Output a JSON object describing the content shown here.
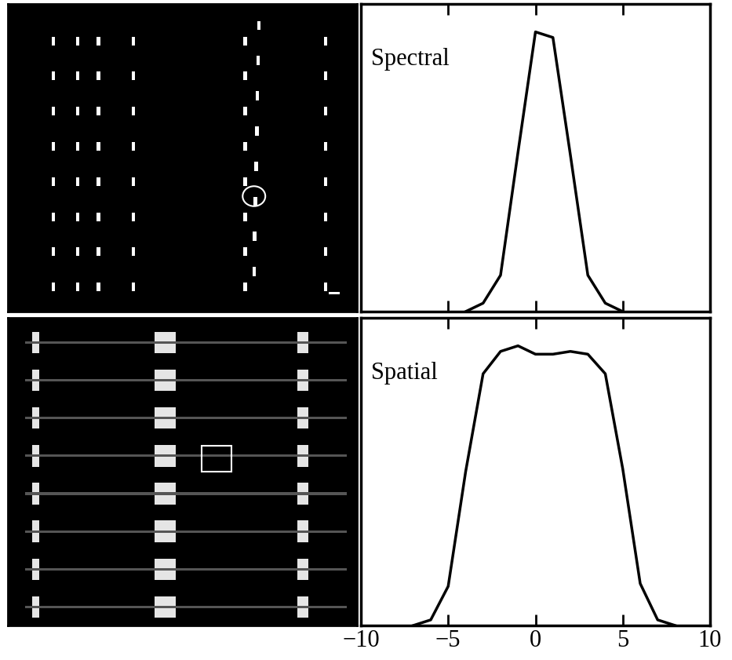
{
  "chart_data": [
    {
      "type": "line",
      "title": "Spectral",
      "x": [
        -4,
        -3,
        -2,
        -1,
        0,
        1,
        2,
        3,
        4,
        5
      ],
      "values": [
        0,
        0.03,
        0.13,
        0.57,
        1.0,
        0.98,
        0.56,
        0.13,
        0.03,
        0
      ],
      "color": "#000000",
      "xlim": [
        -10,
        10
      ],
      "ylim": [
        0,
        1.1
      ],
      "xticks": [
        {
          "value": -10,
          "label": "−10"
        },
        {
          "value": -5,
          "label": "−5"
        },
        0,
        5,
        10
      ],
      "yticks": [],
      "tick_labels": false
    },
    {
      "type": "line",
      "title": "Spatial",
      "x": [
        -7,
        -6,
        -5,
        -4,
        -3,
        -2,
        -1,
        0,
        1,
        2,
        3,
        4,
        5,
        6,
        7,
        8
      ],
      "values": [
        0,
        0.02,
        0.14,
        0.55,
        0.9,
        0.98,
        1.0,
        0.97,
        0.97,
        0.98,
        0.97,
        0.9,
        0.56,
        0.15,
        0.02,
        0
      ],
      "color": "#000000",
      "xlim": [
        -10,
        10
      ],
      "ylim": [
        0,
        1.1
      ],
      "xticks": [
        {
          "value": -10,
          "label": "−10"
        },
        {
          "value": -5,
          "label": "−5"
        },
        0,
        5,
        10
      ],
      "yticks": [],
      "tick_labels": "x"
    }
  ]
}
